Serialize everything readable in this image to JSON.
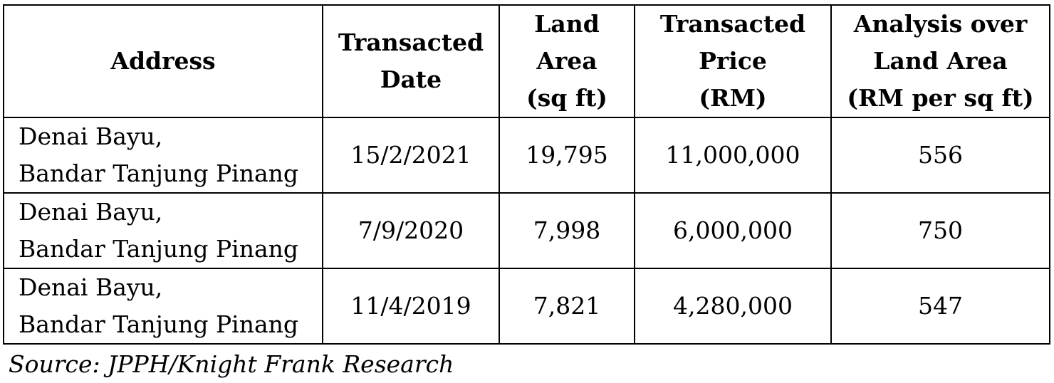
{
  "table": {
    "headers": [
      [
        "Address"
      ],
      [
        "Transacted",
        "Date"
      ],
      [
        "Land",
        "Area",
        "(sq ft)"
      ],
      [
        "Transacted",
        "Price",
        "(RM)"
      ],
      [
        "Analysis over",
        "Land Area",
        "(RM per sq ft)"
      ]
    ],
    "rows": [
      {
        "address": [
          "Denai Bayu,",
          "Bandar Tanjung Pinang"
        ],
        "date": "15/2/2021",
        "land_area": "19,795",
        "price": "11,000,000",
        "analysis": "556"
      },
      {
        "address": [
          "Denai Bayu,",
          "Bandar Tanjung Pinang"
        ],
        "date": "7/9/2020",
        "land_area": "7,998",
        "price": "6,000,000",
        "analysis": "750"
      },
      {
        "address": [
          "Denai Bayu,",
          "Bandar Tanjung Pinang"
        ],
        "date": "11/4/2019",
        "land_area": "7,821",
        "price": "4,280,000",
        "analysis": "547"
      }
    ]
  },
  "source": "Source: JPPH/Knight Frank Research"
}
